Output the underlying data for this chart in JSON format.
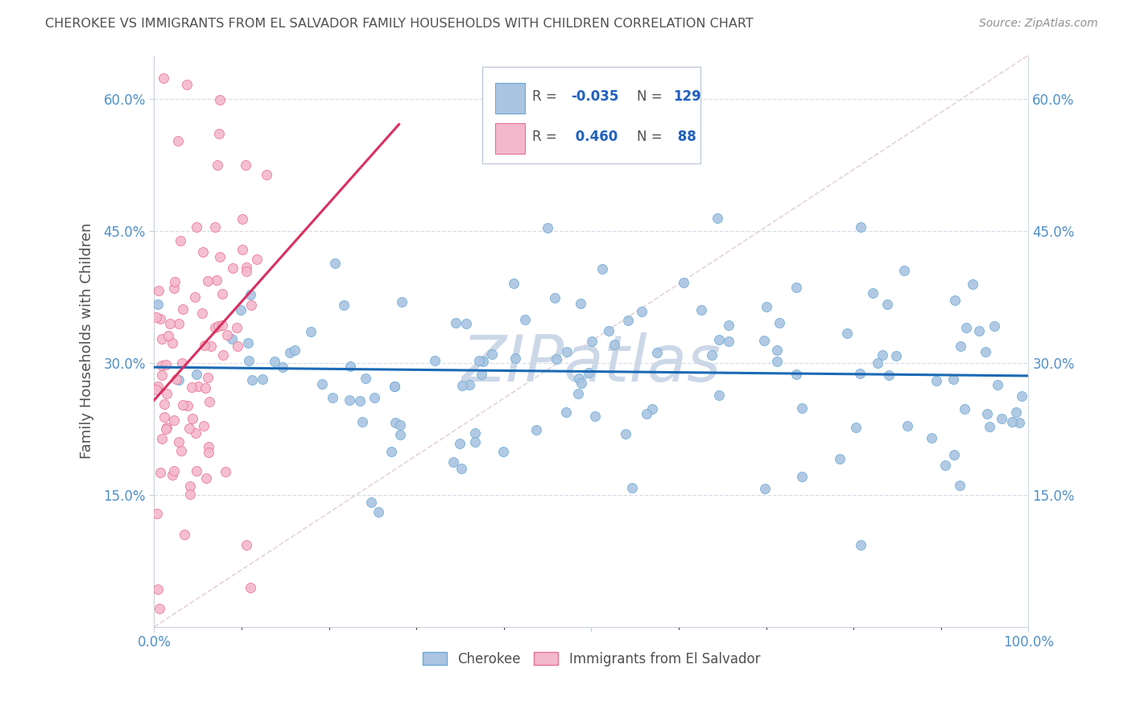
{
  "title": "CHEROKEE VS IMMIGRANTS FROM EL SALVADOR FAMILY HOUSEHOLDS WITH CHILDREN CORRELATION CHART",
  "source": "Source: ZipAtlas.com",
  "ylabel": "Family Households with Children",
  "x_min": 0.0,
  "x_max": 1.0,
  "y_min": 0.0,
  "y_max": 0.65,
  "y_tick_labels": [
    "15.0%",
    "30.0%",
    "45.0%",
    "60.0%"
  ],
  "y_tick_values": [
    0.15,
    0.3,
    0.45,
    0.6
  ],
  "cherokee_color": "#aac4e2",
  "cherokee_edge_color": "#6aaad4",
  "elsalvador_color": "#f4b8cc",
  "elsalvador_edge_color": "#e87090",
  "trend_cherokee_color": "#1a6ab5",
  "trend_elsalvador_color": "#d93060",
  "diagonal_color": "#e0c8d0",
  "grid_color": "#d8dde8",
  "title_color": "#505050",
  "source_color": "#909090",
  "tick_color": "#5090c8",
  "ylabel_color": "#505050",
  "watermark_color": "#ccd8e8",
  "legend_text_color": "#505050",
  "legend_val_color": "#2060c0",
  "bottom_legend_text_color": "#505050",
  "cherokee_R": -0.035,
  "cherokee_N": 129,
  "elsalvador_R": 0.46,
  "elsalvador_N": 88,
  "background_color": "#ffffff"
}
